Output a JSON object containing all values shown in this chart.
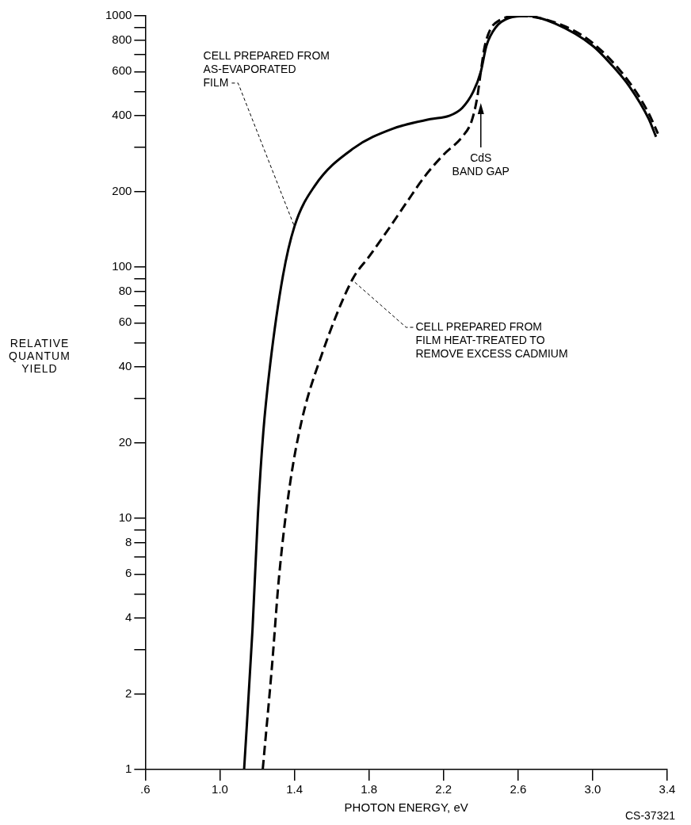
{
  "chart_data": {
    "type": "line",
    "xlabel": "PHOTON ENERGY, eV",
    "ylabel": "RELATIVE\nQUANTUM\nYIELD",
    "log": "y",
    "marker": "none",
    "grid": false,
    "legend": false,
    "xlim": [
      0.6,
      3.4
    ],
    "xticks": [
      {
        "value": 0.6,
        "label": ".6"
      },
      {
        "value": 1.0,
        "label": "1.0"
      },
      {
        "value": 1.4,
        "label": "1.4"
      },
      {
        "value": 1.8,
        "label": "1.8"
      },
      {
        "value": 2.2,
        "label": "2.2"
      },
      {
        "value": 2.6,
        "label": "2.6"
      },
      {
        "value": 3.0,
        "label": "3.0"
      },
      {
        "value": 3.4,
        "label": "3.4"
      }
    ],
    "ylim": [
      1,
      1000
    ],
    "yticks": [
      1,
      2,
      {
        "value": 3,
        "label": null
      },
      4,
      {
        "value": 5,
        "label": null
      },
      6,
      {
        "value": 7,
        "label": null
      },
      8,
      {
        "value": 9,
        "label": null
      },
      10,
      20,
      {
        "value": 30,
        "label": null
      },
      40,
      {
        "value": 50,
        "label": null
      },
      60,
      {
        "value": 70,
        "label": null
      },
      80,
      {
        "value": 90,
        "label": null
      },
      100,
      200,
      {
        "value": 300,
        "label": null
      },
      400,
      {
        "value": 500,
        "label": null
      },
      600,
      {
        "value": 700,
        "label": null
      },
      800,
      {
        "value": 900,
        "label": null
      },
      1000
    ],
    "series": [
      {
        "color": "#000000",
        "line_style": "solid",
        "x": [
          1.13,
          1.175,
          1.204,
          1.233,
          1.27,
          1.338,
          1.4,
          1.508,
          1.717,
          1.925,
          2.13,
          2.23,
          2.3,
          2.36,
          2.4,
          2.43,
          2.48,
          2.55,
          2.65,
          2.8,
          3.0,
          3.1,
          3.2,
          3.3,
          3.34
        ],
        "values": [
          1,
          3.6,
          10.3,
          22,
          41,
          92,
          145,
          210,
          297,
          355,
          388,
          400,
          430,
          500,
          600,
          760,
          900,
          980,
          1000,
          930,
          760,
          640,
          520,
          390,
          330
        ]
      },
      {
        "color": "#000000",
        "line_style": "dashed",
        "x": [
          1.23,
          1.28,
          1.317,
          1.375,
          1.442,
          1.538,
          1.71,
          1.8,
          1.9,
          2.0,
          2.1,
          2.2,
          2.3,
          2.35,
          2.38,
          2.4,
          2.42,
          2.45,
          2.5,
          2.6,
          2.8,
          3.0,
          3.2,
          3.3,
          3.35
        ],
        "values": [
          1,
          2.6,
          5.8,
          13.5,
          25,
          43,
          89,
          110,
          140,
          180,
          230,
          280,
          330,
          380,
          470,
          600,
          750,
          880,
          960,
          1000,
          940,
          780,
          540,
          410,
          340
        ]
      }
    ],
    "annotations": [
      {
        "text": "CELL PREPARED FROM\nAS-EVAPORATED\nFILM",
        "x": 1.4,
        "y": 145
      },
      {
        "text": "CELL PREPARED FROM\nFILM HEAT-TREATED TO\nREMOVE EXCESS CADMIUM",
        "x": 1.71,
        "y": 89
      },
      {
        "text": "CdS\nBAND GAP",
        "x": 2.4,
        "y": 450
      },
      "CS-37321"
    ]
  }
}
